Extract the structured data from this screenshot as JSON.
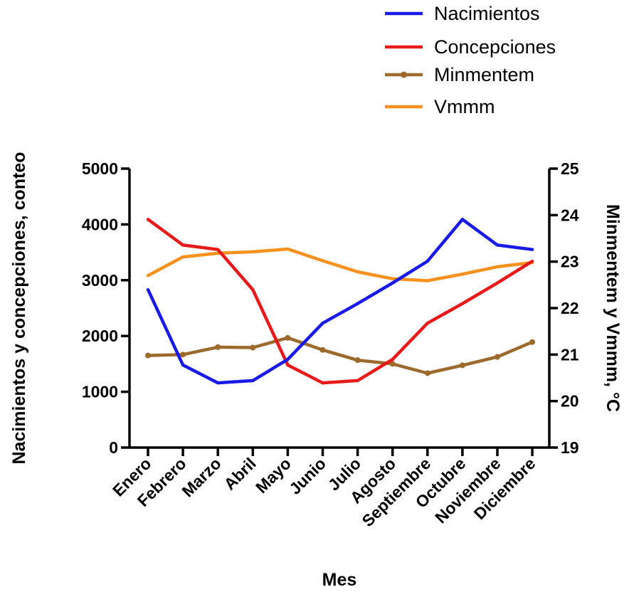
{
  "chart_data": {
    "type": "line",
    "categories": [
      "Enero",
      "Febrero",
      "Marzo",
      "Abril",
      "Mayo",
      "Junio",
      "Julio",
      "Agosto",
      "Septiembre",
      "Octubre",
      "Noviembre",
      "Diciembre"
    ],
    "xlabel": "Mes",
    "ylabel_left": "Nacimientos y concepciones, conteo",
    "ylabel_right": "Minmentem y Vmmm, °C",
    "ylim_left": [
      0,
      5000
    ],
    "yticks_left": [
      0,
      1000,
      2000,
      3000,
      4000,
      5000
    ],
    "ylim_right": [
      19,
      25
    ],
    "yticks_right": [
      19,
      20,
      21,
      22,
      23,
      24,
      25
    ],
    "grid": false,
    "legend_position": "top-right",
    "series": [
      {
        "name": "Nacimientos",
        "axis": "left",
        "color": "#1a1ae6",
        "marker": false,
        "values": [
          2830,
          1480,
          1160,
          1200,
          1580,
          2230,
          2580,
          2950,
          3340,
          4090,
          3630,
          3550
        ]
      },
      {
        "name": "Concepciones",
        "axis": "left",
        "color": "#e61a1a",
        "marker": false,
        "values": [
          4090,
          3630,
          3550,
          2830,
          1480,
          1160,
          1200,
          1580,
          2230,
          2580,
          2950,
          3340
        ]
      },
      {
        "name": "Minmentem",
        "axis": "right",
        "color": "#9b6a2c",
        "marker": true,
        "values": [
          20.98,
          21.0,
          21.16,
          21.15,
          21.36,
          21.1,
          20.88,
          20.8,
          20.6,
          20.77,
          20.95,
          21.27
        ]
      },
      {
        "name": "Vmmm",
        "axis": "right",
        "color": "#f5911e",
        "marker": false,
        "values": [
          22.7,
          23.1,
          23.18,
          23.21,
          23.27,
          23.02,
          22.78,
          22.63,
          22.59,
          22.73,
          22.89,
          22.98
        ]
      }
    ]
  }
}
